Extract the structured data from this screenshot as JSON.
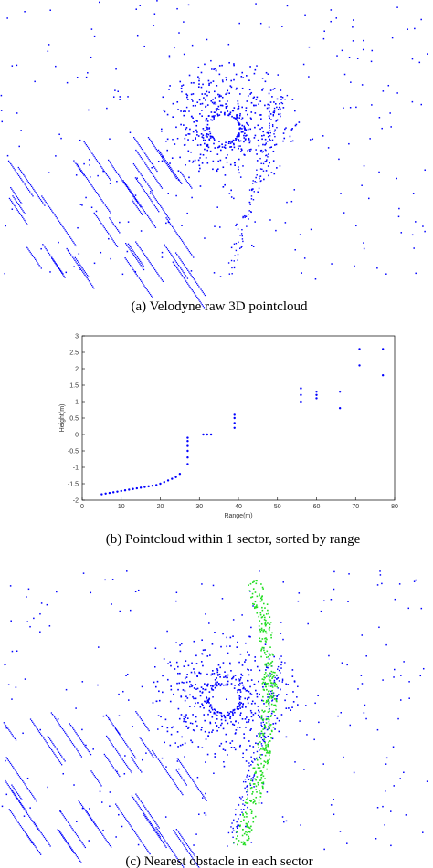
{
  "figure": {
    "captions": [
      "(a) Velodyne raw 3D pointcloud",
      "(b) Pointcloud within 1 sector, sorted by range",
      "(c) Nearest obstacle in each sector"
    ]
  },
  "chart_data": {
    "type": "scatter",
    "xlabel": "Range(m)",
    "ylabel": "Height(m)",
    "xlim": [
      0,
      80
    ],
    "ylim": [
      -2,
      3
    ],
    "xticks": [
      0,
      10,
      20,
      30,
      40,
      50,
      60,
      70,
      80
    ],
    "yticks": [
      -2,
      -1.5,
      -1,
      -0.5,
      0,
      0.5,
      1,
      1.5,
      2,
      2.5,
      3
    ],
    "series": [
      {
        "color": "#0000ff",
        "x": [
          5,
          6,
          7,
          8,
          9,
          10,
          11,
          12,
          13,
          14,
          15,
          16,
          17,
          18,
          19,
          20,
          21,
          22,
          23,
          24,
          25,
          27,
          27,
          27,
          27,
          27,
          27,
          31,
          32,
          33,
          39,
          39,
          39,
          39,
          56,
          56,
          56,
          60,
          60,
          60,
          66,
          66,
          71,
          71,
          77,
          77
        ],
        "values": [
          -1.82,
          -1.8,
          -1.78,
          -1.76,
          -1.74,
          -1.72,
          -1.7,
          -1.68,
          -1.66,
          -1.64,
          -1.62,
          -1.6,
          -1.58,
          -1.56,
          -1.54,
          -1.5,
          -1.45,
          -1.4,
          -1.35,
          -1.3,
          -1.2,
          -0.9,
          -0.7,
          -0.5,
          -0.35,
          -0.2,
          -0.1,
          0,
          0,
          0,
          0.2,
          0.35,
          0.5,
          0.6,
          1.0,
          1.2,
          1.4,
          1.1,
          1.2,
          1.3,
          0.8,
          1.3,
          2.1,
          2.6,
          1.8,
          2.6
        ]
      }
    ]
  }
}
